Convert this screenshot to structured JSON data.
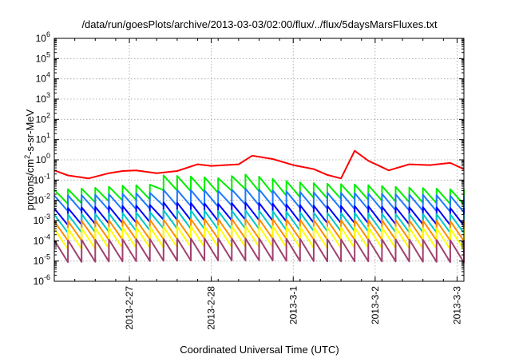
{
  "chart_data": {
    "type": "line",
    "title": "/data/run/goesPlots/archive/2013-03-03/02:00/flux/../flux/5daysMarsFluxes.txt",
    "xlabel": "Coordinated Universal Time (UTC)",
    "ylabel": "protons/cm²-s-sr-MeV",
    "ylabel_parts": {
      "base": "protons/cm",
      "sup": "2",
      "rest": "-s-sr-MeV"
    },
    "yscale": "log",
    "ylim": [
      1e-06,
      1000000.0
    ],
    "y_ticks": [
      {
        "base": "10",
        "exp": "-6",
        "value": -6
      },
      {
        "base": "10",
        "exp": "-5",
        "value": -5
      },
      {
        "base": "10",
        "exp": "-4",
        "value": -4
      },
      {
        "base": "10",
        "exp": "-3",
        "value": -3
      },
      {
        "base": "10",
        "exp": "-2",
        "value": -2
      },
      {
        "base": "10",
        "exp": "-1",
        "value": -1
      },
      {
        "base": "10",
        "exp": "0",
        "value": 0
      },
      {
        "base": "10",
        "exp": "1",
        "value": 1
      },
      {
        "base": "10",
        "exp": "2",
        "value": 2
      },
      {
        "base": "10",
        "exp": "3",
        "value": 3
      },
      {
        "base": "10",
        "exp": "4",
        "value": 4
      },
      {
        "base": "10",
        "exp": "5",
        "value": 5
      },
      {
        "base": "10",
        "exp": "6",
        "value": 6
      }
    ],
    "xlim": [
      "2013-02-26 02:00",
      "2013-03-03 02:00"
    ],
    "x_ticks": [
      {
        "label": "2013-2-27",
        "value": "2013-02-27 00:00"
      },
      {
        "label": "2013-2-28",
        "value": "2013-02-28 00:00"
      },
      {
        "label": "2013-3-1",
        "value": "2013-03-01 00:00"
      },
      {
        "label": "2013-3-2",
        "value": "2013-03-02 00:00"
      },
      {
        "label": "2013-3-3",
        "value": "2013-03-03 00:00"
      }
    ],
    "grid": true,
    "legend": "none",
    "series": [
      {
        "color": "#ff0000",
        "sawtooth": false,
        "x": [
          "2013-02-26 02:00",
          "2013-02-26 06:00",
          "2013-02-26 12:00",
          "2013-02-26 18:00",
          "2013-02-26 22:00",
          "2013-02-27 02:00",
          "2013-02-27 08:00",
          "2013-02-27 14:00",
          "2013-02-27 20:00",
          "2013-02-28 00:00",
          "2013-02-28 04:00",
          "2013-02-28 08:00",
          "2013-02-28 12:00",
          "2013-02-28 18:00",
          "2013-03-01 00:00",
          "2013-03-01 06:00",
          "2013-03-01 10:00",
          "2013-03-01 14:00",
          "2013-03-01 18:00",
          "2013-03-01 22:00",
          "2013-03-02 04:00",
          "2013-03-02 10:00",
          "2013-03-02 16:00",
          "2013-03-02 22:00",
          "2013-03-03 02:00"
        ],
        "y": [
          0.3,
          0.17,
          0.12,
          0.22,
          0.28,
          0.3,
          0.22,
          0.28,
          0.6,
          0.5,
          0.55,
          0.6,
          1.6,
          1.1,
          0.55,
          0.35,
          0.18,
          0.12,
          2.8,
          0.9,
          0.3,
          0.6,
          0.55,
          0.7,
          0.35
        ]
      },
      {
        "color": "#00ee00",
        "sawtooth": true,
        "x": [
          "2013-02-26 02:00",
          "2013-02-26 12:00",
          "2013-02-26 22:00",
          "2013-02-27 06:00",
          "2013-02-27 10:00",
          "2013-02-27 20:00",
          "2013-02-28 04:00",
          "2013-02-28 08:00",
          "2013-02-28 16:00",
          "2013-03-01 00:00",
          "2013-03-01 10:00",
          "2013-03-01 20:00",
          "2013-03-02 06:00",
          "2013-03-02 16:00",
          "2013-03-03 02:00"
        ],
        "y": [
          0.025,
          0.03,
          0.04,
          0.045,
          0.13,
          0.11,
          0.09,
          0.16,
          0.1,
          0.06,
          0.05,
          0.045,
          0.035,
          0.03,
          0.025
        ]
      },
      {
        "color": "#1e78ff",
        "sawtooth": true,
        "x": [
          "2013-02-26 02:00",
          "2013-02-26 12:00",
          "2013-02-26 22:00",
          "2013-02-27 06:00",
          "2013-02-27 10:00",
          "2013-02-27 20:00",
          "2013-02-28 04:00",
          "2013-02-28 08:00",
          "2013-02-28 16:00",
          "2013-03-01 00:00",
          "2013-03-01 10:00",
          "2013-03-01 20:00",
          "2013-03-02 06:00",
          "2013-03-02 16:00",
          "2013-03-03 02:00"
        ],
        "y": [
          0.013,
          0.014,
          0.016,
          0.018,
          0.025,
          0.024,
          0.022,
          0.03,
          0.025,
          0.02,
          0.018,
          0.017,
          0.015,
          0.014,
          0.012
        ]
      },
      {
        "color": "#0000ff",
        "sawtooth": true,
        "x": [
          "2013-02-26 02:00",
          "2013-02-26 12:00",
          "2013-02-26 22:00",
          "2013-02-27 06:00",
          "2013-02-27 10:00",
          "2013-02-27 20:00",
          "2013-02-28 04:00",
          "2013-02-28 08:00",
          "2013-02-28 16:00",
          "2013-03-01 00:00",
          "2013-03-01 10:00",
          "2013-03-01 20:00",
          "2013-03-02 06:00",
          "2013-03-02 16:00",
          "2013-03-03 02:00"
        ],
        "y": [
          0.003,
          0.0035,
          0.004,
          0.0045,
          0.006,
          0.0055,
          0.005,
          0.006,
          0.0055,
          0.0045,
          0.004,
          0.004,
          0.0035,
          0.0035,
          0.003
        ]
      },
      {
        "color": "#00c8c8",
        "sawtooth": true,
        "x": [
          "2013-02-26 02:00",
          "2013-02-26 12:00",
          "2013-02-26 22:00",
          "2013-02-27 06:00",
          "2013-02-27 10:00",
          "2013-02-27 20:00",
          "2013-02-28 04:00",
          "2013-02-28 08:00",
          "2013-02-28 16:00",
          "2013-03-01 00:00",
          "2013-03-01 10:00",
          "2013-03-01 20:00",
          "2013-03-02 06:00",
          "2013-03-02 16:00",
          "2013-03-03 02:00"
        ],
        "y": [
          0.0015,
          0.0016,
          0.0018,
          0.002,
          0.0025,
          0.0024,
          0.0022,
          0.0025,
          0.0023,
          0.002,
          0.0018,
          0.0018,
          0.0016,
          0.0016,
          0.0015
        ]
      },
      {
        "color": "#ff8c00",
        "sawtooth": true,
        "x": [
          "2013-02-26 02:00",
          "2013-02-26 22:00",
          "2013-02-27 20:00",
          "2013-02-28 16:00",
          "2013-03-01 10:00",
          "2013-03-02 06:00",
          "2013-03-03 02:00"
        ],
        "y": [
          0.0007,
          0.0008,
          0.0009,
          0.0009,
          0.0008,
          0.0008,
          0.0007
        ]
      },
      {
        "color": "#ffff00",
        "sawtooth": true,
        "x": [
          "2013-02-26 02:00",
          "2013-02-26 22:00",
          "2013-02-27 20:00",
          "2013-02-28 16:00",
          "2013-03-01 10:00",
          "2013-03-02 06:00",
          "2013-03-03 02:00"
        ],
        "y": [
          0.0003,
          0.00035,
          0.0004,
          0.0004,
          0.00035,
          0.00035,
          0.0003
        ]
      },
      {
        "color": "#a0406e",
        "sawtooth": true,
        "x": [
          "2013-02-26 02:00",
          "2013-02-26 22:00",
          "2013-02-27 20:00",
          "2013-02-28 16:00",
          "2013-03-01 10:00",
          "2013-03-02 06:00",
          "2013-03-03 02:00"
        ],
        "y": [
          8e-05,
          9e-05,
          0.0001,
          0.0001,
          9e-05,
          9e-05,
          8e-05
        ]
      }
    ]
  }
}
